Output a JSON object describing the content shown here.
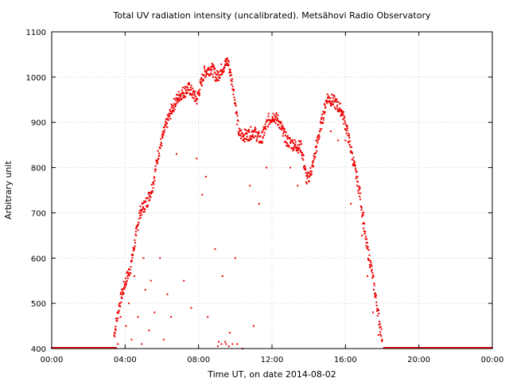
{
  "chart_data": {
    "type": "scatter",
    "title": "Total UV radiation intensity (uncalibrated). Metsähovi Radio Observatory",
    "xlabel": "Time UT, on date 2014-08-02",
    "ylabel": "Arbitrary unit",
    "xlim": [
      0,
      24
    ],
    "ylim": [
      400,
      1100
    ],
    "x_tick_values": [
      0,
      4,
      8,
      12,
      16,
      20,
      24
    ],
    "x_tick_labels": [
      "00:00",
      "04:00",
      "08:00",
      "12:00",
      "16:00",
      "20:00",
      "00:00"
    ],
    "y_tick_values": [
      400,
      500,
      600,
      700,
      800,
      900,
      1000,
      1100
    ],
    "y_tick_labels": [
      "400",
      "500",
      "600",
      "700",
      "800",
      "900",
      "1000",
      "1100"
    ],
    "grid": true,
    "marker_color": "#ee0000",
    "baseline_segments": [
      {
        "x_start": 0.0,
        "x_end": 3.55,
        "y": 400
      },
      {
        "x_start": 18.1,
        "x_end": 24.0,
        "y": 400
      }
    ],
    "envelope": {
      "x": [
        3.4,
        3.7,
        4.0,
        4.3,
        4.8,
        5.2,
        5.5,
        5.8,
        6.2,
        6.6,
        7.0,
        7.5,
        7.9,
        8.3,
        8.7,
        9.0,
        9.3,
        9.6,
        9.9,
        10.2,
        10.6,
        11.0,
        11.4,
        11.8,
        12.1,
        12.4,
        12.8,
        13.2,
        13.6,
        13.9,
        14.2,
        14.6,
        15.0,
        15.4,
        15.8,
        16.1,
        16.5,
        16.8,
        17.1,
        17.4,
        17.7,
        18.0
      ],
      "y": [
        430,
        500,
        545,
        580,
        700,
        725,
        760,
        830,
        890,
        935,
        962,
        975,
        950,
        1010,
        1020,
        1000,
        1020,
        1035,
        975,
        875,
        870,
        880,
        860,
        905,
        915,
        900,
        860,
        850,
        845,
        770,
        800,
        880,
        955,
        945,
        925,
        880,
        800,
        740,
        640,
        580,
        500,
        420
      ]
    },
    "scatter_points": {
      "x": [
        3.6,
        3.75,
        3.9,
        4.05,
        4.2,
        4.35,
        4.5,
        4.7,
        4.9,
        5.1,
        5.3,
        5.6,
        5.9,
        6.1,
        6.3,
        6.5,
        7.2,
        7.6,
        8.2,
        8.5,
        8.9,
        9.1,
        9.3,
        9.5,
        9.7,
        10.0,
        10.4,
        10.8,
        11.3,
        11.7,
        12.6,
        13.0,
        13.4,
        14.0,
        14.4,
        14.8,
        15.2,
        15.6,
        16.0,
        16.3,
        16.6,
        16.9,
        17.2,
        17.5,
        17.8,
        18.0,
        9.05,
        9.25,
        9.45,
        9.65,
        9.85,
        10.1,
        7.9,
        8.4,
        5.0,
        5.4,
        4.6,
        6.8,
        11.0,
        17.0
      ],
      "y": [
        410,
        470,
        520,
        450,
        500,
        420,
        560,
        470,
        410,
        530,
        440,
        480,
        600,
        420,
        520,
        470,
        550,
        490,
        740,
        470,
        620,
        415,
        560,
        410,
        435,
        600,
        400,
        760,
        720,
        800,
        870,
        800,
        760,
        770,
        860,
        910,
        880,
        860,
        860,
        720,
        790,
        650,
        560,
        480,
        430,
        420,
        405,
        410,
        415,
        405,
        410,
        410,
        820,
        780,
        600,
        550,
        650,
        830,
        450,
        700
      ]
    }
  }
}
